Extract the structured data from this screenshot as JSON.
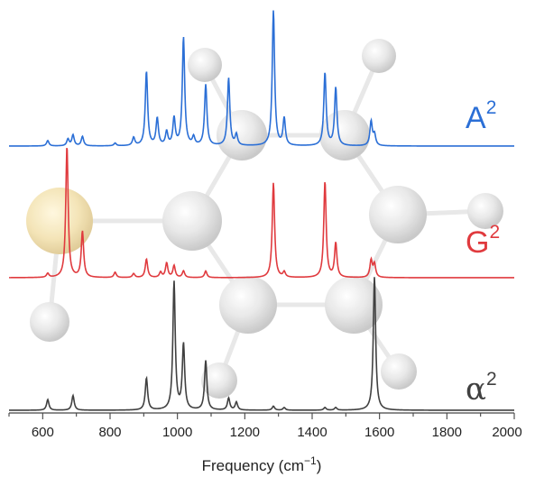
{
  "chart_data": {
    "type": "line",
    "xlabel_main": "Frequency (cm",
    "xlabel_sup": "−1",
    "xlabel_end": ")",
    "xlim": [
      500,
      2000
    ],
    "xticks": [
      600,
      800,
      1000,
      1200,
      1400,
      1600,
      1800,
      2000
    ],
    "ylabel": "",
    "grid": false,
    "legend": "inline-right",
    "series": [
      {
        "name": "A",
        "sup": "2",
        "color": "#2b6fd6",
        "peaks": [
          {
            "x": 615,
            "y": 0.04
          },
          {
            "x": 675,
            "y": 0.05
          },
          {
            "x": 690,
            "y": 0.08
          },
          {
            "x": 718,
            "y": 0.07
          },
          {
            "x": 815,
            "y": 0.02
          },
          {
            "x": 870,
            "y": 0.06
          },
          {
            "x": 908,
            "y": 0.55
          },
          {
            "x": 940,
            "y": 0.2
          },
          {
            "x": 968,
            "y": 0.1
          },
          {
            "x": 990,
            "y": 0.2
          },
          {
            "x": 1018,
            "y": 0.8
          },
          {
            "x": 1048,
            "y": 0.06
          },
          {
            "x": 1084,
            "y": 0.45
          },
          {
            "x": 1152,
            "y": 0.5
          },
          {
            "x": 1175,
            "y": 0.08
          },
          {
            "x": 1285,
            "y": 1.0
          },
          {
            "x": 1317,
            "y": 0.2
          },
          {
            "x": 1438,
            "y": 0.54
          },
          {
            "x": 1470,
            "y": 0.43
          },
          {
            "x": 1575,
            "y": 0.18
          },
          {
            "x": 1585,
            "y": 0.08
          }
        ]
      },
      {
        "name": "G",
        "sup": "2",
        "color": "#e03a3e",
        "peaks": [
          {
            "x": 615,
            "y": 0.03
          },
          {
            "x": 672,
            "y": 1.0
          },
          {
            "x": 718,
            "y": 0.35
          },
          {
            "x": 815,
            "y": 0.04
          },
          {
            "x": 870,
            "y": 0.03
          },
          {
            "x": 908,
            "y": 0.14
          },
          {
            "x": 950,
            "y": 0.04
          },
          {
            "x": 968,
            "y": 0.11
          },
          {
            "x": 990,
            "y": 0.09
          },
          {
            "x": 1018,
            "y": 0.05
          },
          {
            "x": 1084,
            "y": 0.05
          },
          {
            "x": 1285,
            "y": 0.72
          },
          {
            "x": 1317,
            "y": 0.04
          },
          {
            "x": 1438,
            "y": 0.73
          },
          {
            "x": 1470,
            "y": 0.26
          },
          {
            "x": 1575,
            "y": 0.13
          },
          {
            "x": 1585,
            "y": 0.1
          }
        ]
      },
      {
        "name": "α",
        "sup": "2",
        "color": "#404040",
        "peaks": [
          {
            "x": 615,
            "y": 0.08
          },
          {
            "x": 690,
            "y": 0.11
          },
          {
            "x": 908,
            "y": 0.24
          },
          {
            "x": 990,
            "y": 0.96
          },
          {
            "x": 1018,
            "y": 0.49
          },
          {
            "x": 1084,
            "y": 0.37
          },
          {
            "x": 1152,
            "y": 0.09
          },
          {
            "x": 1175,
            "y": 0.06
          },
          {
            "x": 1285,
            "y": 0.03
          },
          {
            "x": 1317,
            "y": 0.02
          },
          {
            "x": 1438,
            "y": 0.02
          },
          {
            "x": 1470,
            "y": 0.02
          },
          {
            "x": 1585,
            "y": 1.0
          }
        ]
      }
    ]
  }
}
